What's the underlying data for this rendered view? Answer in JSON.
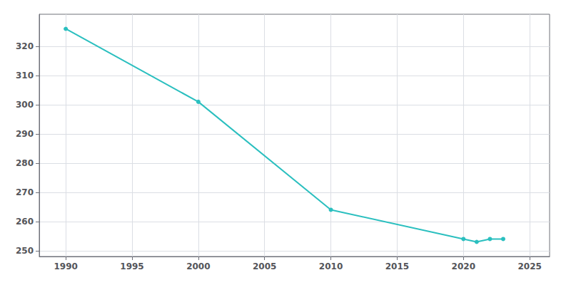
{
  "chart_data": {
    "type": "line",
    "x": [
      1990,
      2000,
      2010,
      2020,
      2021,
      2022,
      2023
    ],
    "values": [
      326,
      301,
      264,
      254,
      253,
      254,
      254
    ],
    "color": "#2abfbf",
    "marker": "circle",
    "xlim": [
      1988,
      2026.5
    ],
    "xticks": [
      1990,
      1995,
      2000,
      2005,
      2010,
      2015,
      2020,
      2025
    ],
    "ylim": [
      248,
      331
    ],
    "yticks": [
      250,
      260,
      270,
      280,
      290,
      300,
      310,
      320
    ],
    "grid": true
  }
}
